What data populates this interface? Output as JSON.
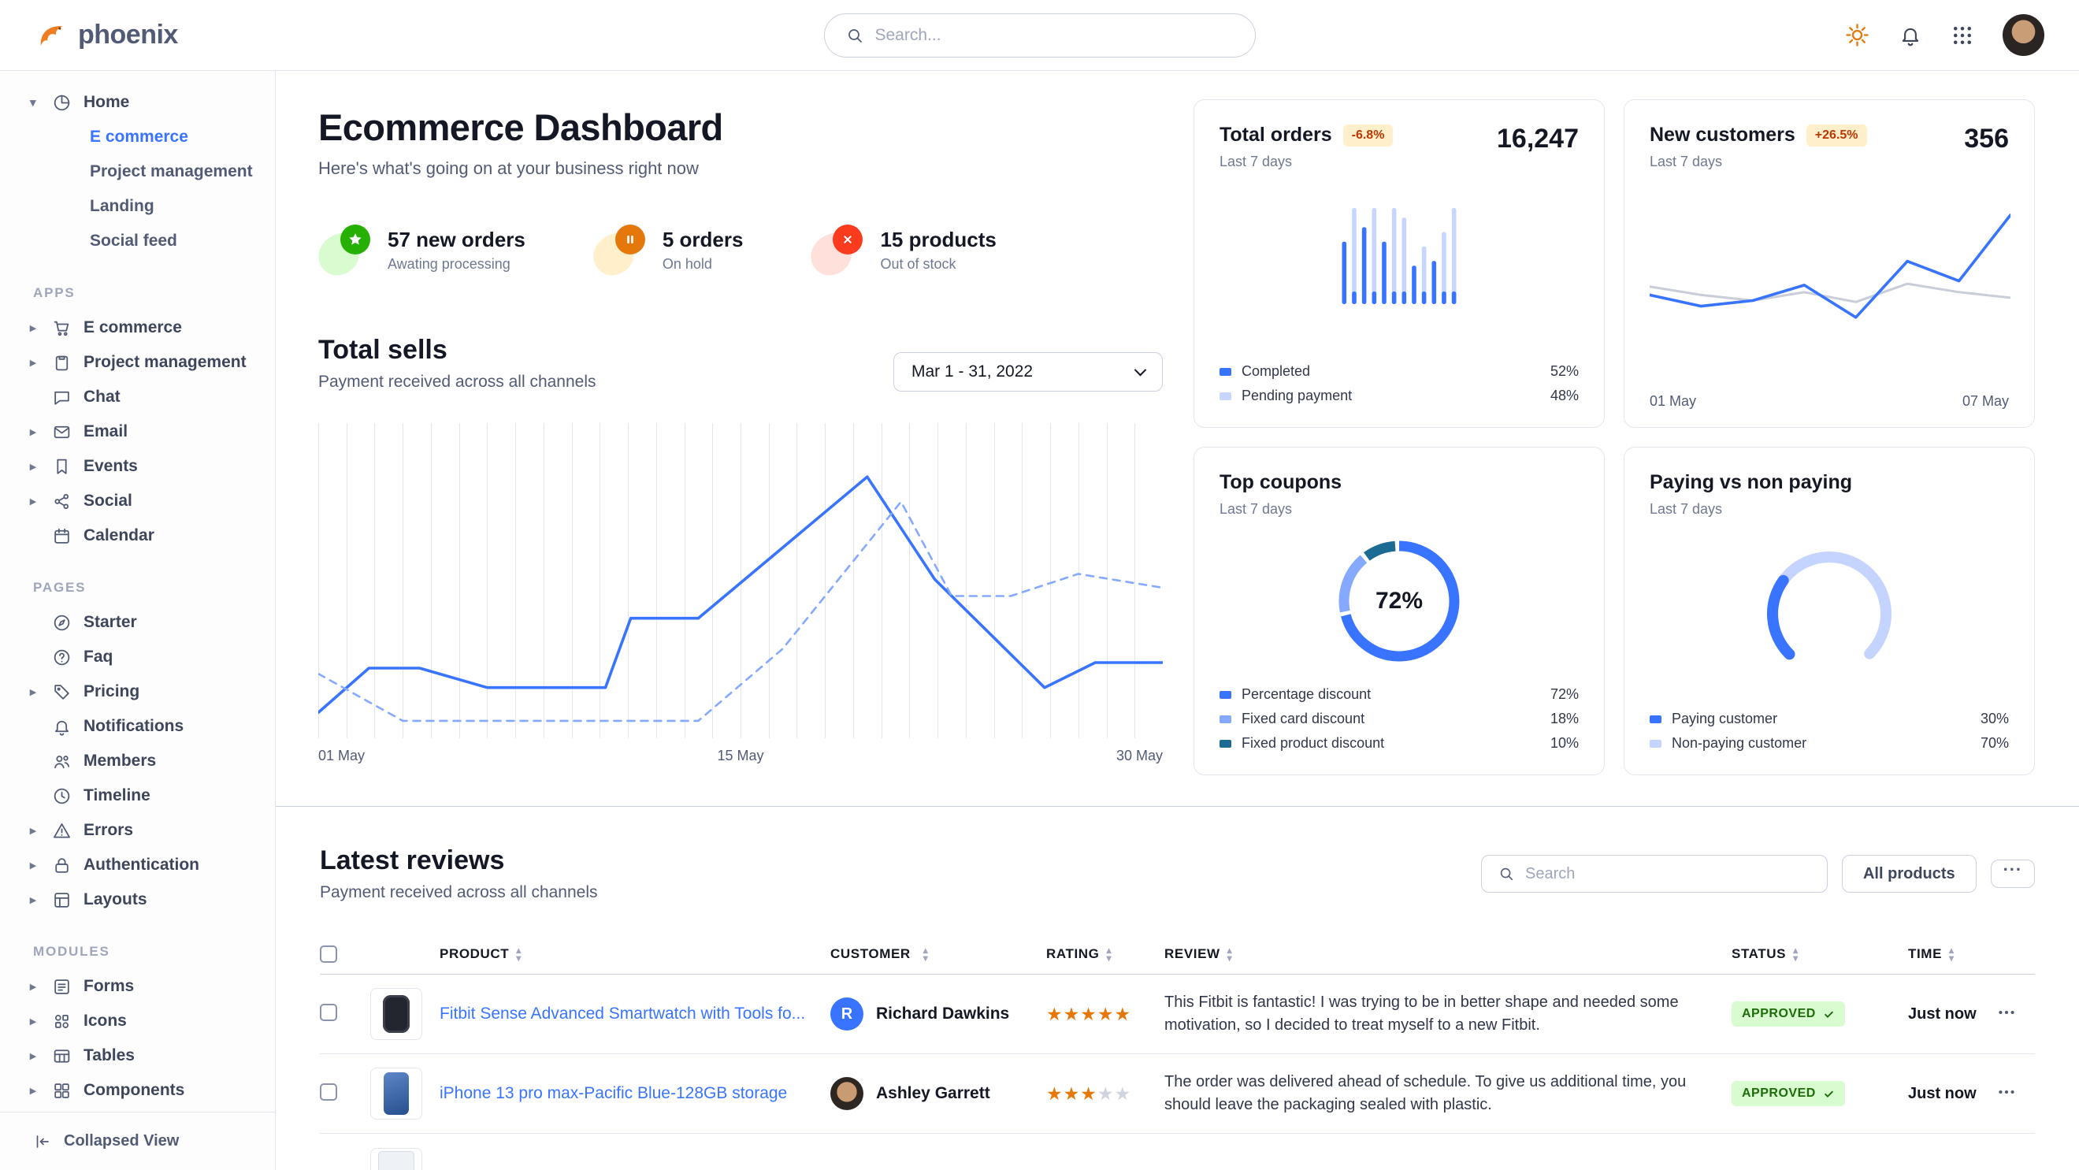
{
  "brand": {
    "name": "phoenix"
  },
  "topbar": {
    "search_placeholder": "Search..."
  },
  "colors": {
    "primary": "#3874ff",
    "primary_light": "#c7d6ff",
    "line_dashed": "#85a9ff",
    "gray_line": "#c8cdd8",
    "warning_badge_bg": "#ffefca",
    "warning_badge_text": "#bc3803",
    "success_badge_bg": "#d9fbd0",
    "success_badge_text": "#1c6c09",
    "star": "#e5780b"
  },
  "sidebar": {
    "groups": [
      {
        "label": "",
        "items": [
          {
            "label": "Home",
            "icon": "pie",
            "caret": "down",
            "children": [
              {
                "label": "E commerce",
                "active": true
              },
              {
                "label": "Project management"
              },
              {
                "label": "Landing"
              },
              {
                "label": "Social feed"
              }
            ]
          }
        ]
      },
      {
        "label": "APPS",
        "items": [
          {
            "label": "E commerce",
            "icon": "cart",
            "caret": "right"
          },
          {
            "label": "Project management",
            "icon": "clipboard",
            "caret": "right"
          },
          {
            "label": "Chat",
            "icon": "chat"
          },
          {
            "label": "Email",
            "icon": "mail",
            "caret": "right"
          },
          {
            "label": "Events",
            "icon": "bookmark",
            "caret": "right"
          },
          {
            "label": "Social",
            "icon": "share",
            "caret": "right"
          },
          {
            "label": "Calendar",
            "icon": "calendar"
          }
        ]
      },
      {
        "label": "PAGES",
        "items": [
          {
            "label": "Starter",
            "icon": "compass"
          },
          {
            "label": "Faq",
            "icon": "question"
          },
          {
            "label": "Pricing",
            "icon": "tag",
            "caret": "right"
          },
          {
            "label": "Notifications",
            "icon": "bell"
          },
          {
            "label": "Members",
            "icon": "users"
          },
          {
            "label": "Timeline",
            "icon": "clock"
          },
          {
            "label": "Errors",
            "icon": "warning",
            "caret": "right"
          },
          {
            "label": "Authentication",
            "icon": "lock",
            "caret": "right"
          },
          {
            "label": "Layouts",
            "icon": "layout",
            "caret": "right"
          }
        ]
      },
      {
        "label": "MODULES",
        "items": [
          {
            "label": "Forms",
            "icon": "forms",
            "caret": "right"
          },
          {
            "label": "Icons",
            "icon": "icons",
            "caret": "right"
          },
          {
            "label": "Tables",
            "icon": "table",
            "caret": "right"
          },
          {
            "label": "Components",
            "icon": "components",
            "caret": "right"
          }
        ]
      }
    ],
    "footer": {
      "label": "Collapsed View"
    }
  },
  "header": {
    "title": "Ecommerce Dashboard",
    "subtitle": "Here's what's going on at your business right now"
  },
  "stats": [
    {
      "value": "57 new orders",
      "caption": "Awating processing",
      "tone": "success",
      "icon": "star"
    },
    {
      "value": "5 orders",
      "caption": "On hold",
      "tone": "warning",
      "icon": "pause"
    },
    {
      "value": "15 products",
      "caption": "Out of stock",
      "tone": "danger",
      "icon": "xmark"
    }
  ],
  "total_sells": {
    "subtitle": "Payment received across all channels",
    "date_range": "Mar 1 - 31, 2022"
  },
  "chart_data": [
    {
      "id": "total-sells",
      "type": "line",
      "title": "Total sells",
      "x_ticks": [
        "01 May",
        "15 May",
        "30 May"
      ],
      "ylim": [
        0,
        100
      ],
      "grid": "vertical",
      "series": [
        {
          "name": "solid",
          "style": "solid",
          "x": [
            0,
            6,
            12,
            20,
            34,
            37,
            45,
            65,
            73,
            86,
            92,
            100
          ],
          "y": [
            7,
            23,
            23,
            16,
            16,
            41,
            41,
            92,
            55,
            16,
            25,
            25
          ]
        },
        {
          "name": "dashed",
          "style": "dashed",
          "x": [
            0,
            10,
            20,
            45,
            55,
            69,
            75,
            82,
            90,
            100
          ],
          "y": [
            21,
            4,
            4,
            4,
            30,
            83,
            49,
            49,
            57,
            52
          ]
        }
      ]
    },
    {
      "id": "total-orders",
      "type": "bar",
      "title": "Total orders",
      "change": "-6.8%",
      "period": "Last 7 days",
      "value": "16,247",
      "bars": [
        {
          "v": 65,
          "series": "completed"
        },
        {
          "v": 100,
          "series": "pending"
        },
        {
          "v": 80,
          "series": "completed"
        },
        {
          "v": 100,
          "series": "pending"
        },
        {
          "v": 65,
          "series": "completed"
        },
        {
          "v": 100,
          "series": "pending"
        },
        {
          "v": 90,
          "series": "pending"
        },
        {
          "v": 40,
          "series": "completed"
        },
        {
          "v": 60,
          "series": "pending"
        },
        {
          "v": 45,
          "series": "completed"
        },
        {
          "v": 75,
          "series": "pending"
        },
        {
          "v": 100,
          "series": "pending"
        }
      ],
      "legend": [
        {
          "label": "Completed",
          "display": "52%",
          "color": "#3874ff"
        },
        {
          "label": "Pending payment",
          "display": "48%",
          "color": "#c7d6ff"
        }
      ]
    },
    {
      "id": "new-customers",
      "type": "line",
      "title": "New customers",
      "change": "+26.5%",
      "period": "Last 7 days",
      "value": "356",
      "x_ticks": [
        "01 May",
        "07 May"
      ],
      "series": [
        {
          "name": "current",
          "color": "#3874ff",
          "y": [
            38,
            30,
            34,
            45,
            22,
            62,
            48,
            95
          ]
        },
        {
          "name": "previous",
          "color": "#c8cdd8",
          "y": [
            44,
            38,
            34,
            40,
            33,
            46,
            40,
            36
          ]
        }
      ]
    },
    {
      "id": "top-coupons",
      "type": "pie",
      "title": "Top coupons",
      "period": "Last 7 days",
      "center_label": "72%",
      "slices": [
        {
          "label": "Percentage discount",
          "value": 72,
          "display": "72%",
          "color": "#3874ff"
        },
        {
          "label": "Fixed card discount",
          "value": 18,
          "display": "18%",
          "color": "#85a9ff"
        },
        {
          "label": "Fixed product discount",
          "value": 10,
          "display": "10%",
          "color": "#1b6b93"
        }
      ]
    },
    {
      "id": "paying-gauge",
      "type": "pie",
      "title": "Paying vs non paying",
      "period": "Last 7 days",
      "arc_degrees": 270,
      "segments": [
        {
          "label": "Paying customer",
          "value": 30,
          "display": "30%",
          "color": "#3874ff"
        },
        {
          "label": "Non-paying customer",
          "value": 70,
          "display": "70%",
          "color": "#c5d4ff"
        }
      ]
    }
  ],
  "reviews": {
    "title": "Latest reviews",
    "subtitle": "Payment received across all channels",
    "search_placeholder": "Search",
    "filter_button": "All products",
    "more_button": "...",
    "columns": [
      "PRODUCT",
      "CUSTOMER",
      "RATING",
      "REVIEW",
      "STATUS",
      "TIME"
    ],
    "rows": [
      {
        "thumb": "watch",
        "product": "Fitbit Sense Advanced Smartwatch with Tools fo...",
        "customer": "Richard Dawkins",
        "avatar_type": "initial",
        "avatar_text": "R",
        "rating": 5,
        "review": "This Fitbit is fantastic! I was trying to be in better shape and needed some motivation, so I decided to treat myself to a new Fitbit.",
        "status": "APPROVED",
        "time": "Just now"
      },
      {
        "thumb": "phone",
        "product": "iPhone 13 pro max-Pacific Blue-128GB storage",
        "customer": "Ashley Garrett",
        "avatar_type": "photo",
        "avatar_text": "",
        "rating": 3,
        "review": "The order was delivered ahead of schedule. To give us additional time, you should leave the packaging sealed with plastic.",
        "status": "APPROVED",
        "time": "Just now"
      },
      {
        "thumb": "tablet",
        "partial": true
      }
    ]
  }
}
